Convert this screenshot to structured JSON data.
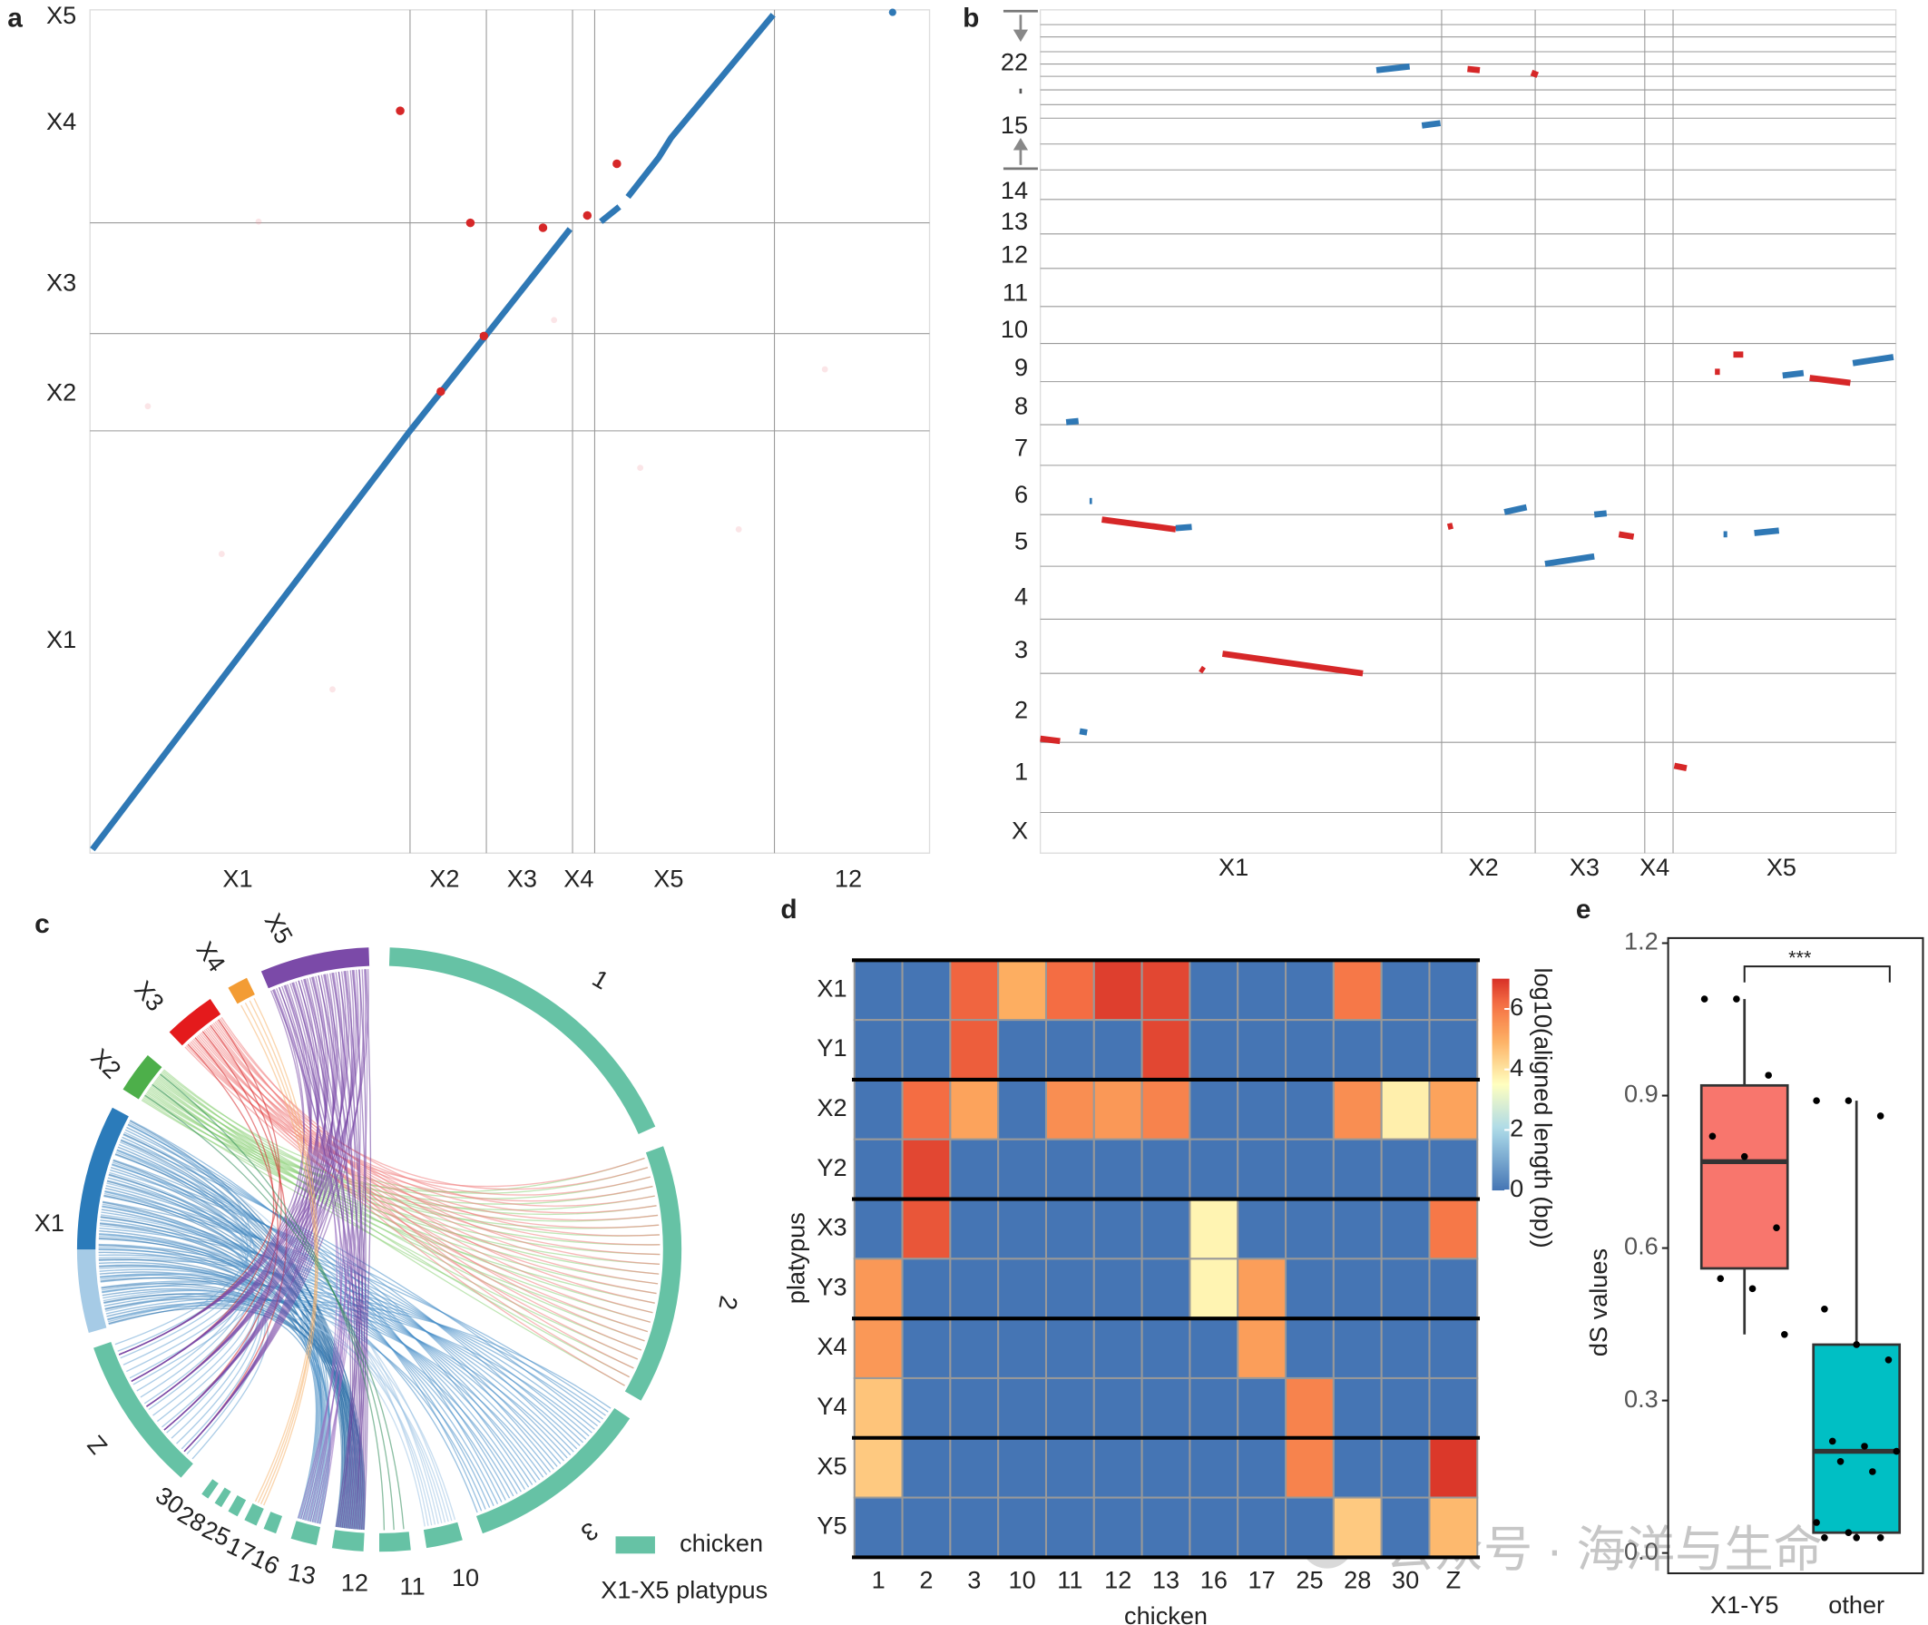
{
  "chart_data": [
    {
      "type": "dotplot",
      "panel": "a",
      "x_categories": [
        "X1",
        "X2",
        "X3",
        "X4",
        "X5",
        "12"
      ],
      "y_categories": [
        "X1",
        "X2",
        "X3",
        "X4",
        "X5"
      ]
    },
    {
      "type": "dotplot",
      "panel": "b",
      "x_categories": [
        "X1",
        "X2",
        "X3",
        "X4",
        "X5"
      ],
      "y_categories": [
        "X",
        "1",
        "2",
        "3",
        "4",
        "5",
        "6",
        "7",
        "8",
        "9",
        "10",
        "11",
        "12",
        "13",
        "14",
        "15",
        "22"
      ]
    },
    {
      "type": "chord",
      "panel": "c",
      "platypus_segments": [
        "X1",
        "X2",
        "X3",
        "X4",
        "X5"
      ],
      "chicken_segments": [
        "1",
        "2",
        "3",
        "10",
        "11",
        "12",
        "13",
        "16",
        "17",
        "25",
        "28",
        "30",
        "Z"
      ],
      "legend": [
        "chicken",
        "X1-X5 platypus"
      ]
    },
    {
      "type": "heatmap",
      "panel": "d",
      "x_label": "chicken",
      "y_label": "platypus",
      "colorbar_label": "log10(aligned length (bp))",
      "rows": [
        "X1",
        "Y1",
        "X2",
        "Y2",
        "X3",
        "Y3",
        "X4",
        "Y4",
        "X5",
        "Y5"
      ],
      "columns": [
        "1",
        "2",
        "3",
        "10",
        "11",
        "12",
        "13",
        "16",
        "17",
        "25",
        "28",
        "30",
        "Z"
      ],
      "values": [
        [
          0,
          0,
          6.3,
          5,
          6.2,
          6.8,
          6.7,
          0,
          0,
          0,
          6,
          0,
          0
        ],
        [
          0,
          0,
          6.4,
          0,
          0,
          0,
          6.7,
          0,
          0,
          0,
          0,
          0,
          0
        ],
        [
          0,
          6.2,
          5.2,
          0,
          5.6,
          5.4,
          5.8,
          0,
          0,
          0,
          5.6,
          3.8,
          5.2
        ],
        [
          0,
          6.7,
          0,
          0,
          0,
          0,
          0,
          0,
          0,
          0,
          0,
          0,
          0
        ],
        [
          0,
          6.5,
          0,
          0,
          0,
          0,
          0,
          3.7,
          0,
          0,
          0,
          0,
          6
        ],
        [
          5.4,
          0,
          0,
          0,
          0,
          0,
          0,
          3.7,
          5.3,
          0,
          0,
          0,
          0
        ],
        [
          5.4,
          0,
          0,
          0,
          0,
          0,
          0,
          0,
          5.3,
          0,
          0,
          0,
          0
        ],
        [
          4.6,
          0,
          0,
          0,
          0,
          0,
          0,
          0,
          0,
          5.8,
          0,
          0,
          0
        ],
        [
          4.5,
          0,
          0,
          0,
          0,
          0,
          0,
          0,
          0,
          5.8,
          0,
          0,
          6.9
        ],
        [
          0,
          0,
          0,
          0,
          0,
          0,
          0,
          0,
          0,
          0,
          4.5,
          0,
          4.8
        ]
      ],
      "clim": [
        0,
        7
      ],
      "cticks": [
        0,
        2,
        4,
        6
      ]
    },
    {
      "type": "box",
      "panel": "e",
      "y_label": "dS values",
      "categories": [
        "X1-Y5",
        "other"
      ],
      "annotation": "***",
      "ylim": [
        -0.04,
        1.21
      ],
      "yticks": [
        {
          "value": 0,
          "label": "0.0"
        },
        {
          "value": 0.3,
          "label": "0.3"
        },
        {
          "value": 0.6,
          "label": "0.6"
        },
        {
          "value": 0.9,
          "label": "0.9"
        },
        {
          "value": 1.2,
          "label": "1.2"
        }
      ],
      "boxes": [
        {
          "color": "#f8766d",
          "whislo": 0.43,
          "q1": 0.56,
          "median": 0.77,
          "q3": 0.92,
          "whishi": 1.09,
          "points": [
            1.09,
            1.09,
            0.94,
            0.82,
            0.78,
            0.64,
            0.54,
            0.52,
            0.43
          ]
        },
        {
          "color": "#00bfc4",
          "whislo": 0.03,
          "q1": 0.04,
          "median": 0.2,
          "q3": 0.41,
          "whishi": 0.89,
          "points": [
            0.89,
            0.89,
            0.86,
            0.48,
            0.41,
            0.38,
            0.22,
            0.21,
            0.2,
            0.18,
            0.16,
            0.06,
            0.04,
            0.03,
            0.03,
            0.03
          ]
        }
      ]
    }
  ],
  "watermark": "公众号 · 海洋与生命"
}
